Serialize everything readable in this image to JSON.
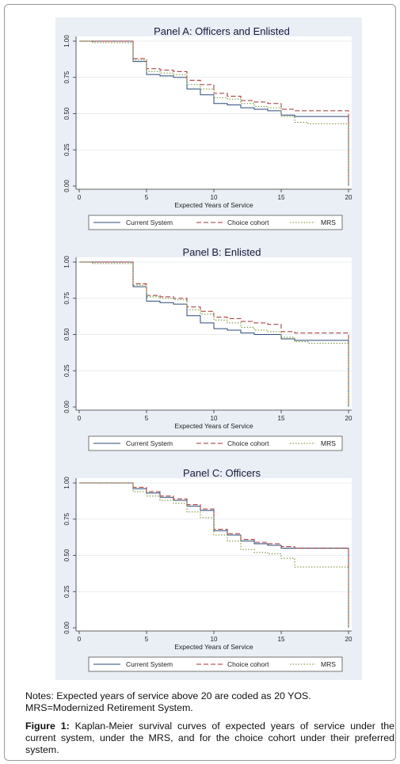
{
  "notes": {
    "line1": "Notes: Expected years of service above 20 are coded as 20 YOS.",
    "line2": "MRS=Modernized Retirement System."
  },
  "caption": {
    "label": "Figure 1:",
    "text": " Kaplan-Meier survival curves of expected years of service under the current system, under the MRS, and for the choice cohort under their preferred system."
  },
  "colors": {
    "current": "#2b4a7a",
    "choice": "#a03030",
    "mrs": "#6e8a2a"
  },
  "chart_data": [
    {
      "type": "line",
      "title": "Panel A: Officers and Enlisted",
      "xlabel": "Expected Years of Service",
      "ylabel": "",
      "xlim": [
        0,
        20
      ],
      "ylim": [
        0,
        1
      ],
      "xticks": [
        "0",
        "5",
        "10",
        "15",
        "20"
      ],
      "yticks": [
        "0.00",
        "0.25",
        "0.50",
        "0.75",
        "1.00"
      ],
      "legend": {
        "position": "bottom",
        "entries": [
          "Current System",
          "Choice cohort",
          "MRS"
        ]
      },
      "series": [
        {
          "name": "Current System",
          "style": "solid",
          "x": [
            0,
            4,
            5,
            6,
            7,
            8,
            9,
            10,
            11,
            12,
            13,
            14,
            15,
            16,
            20,
            20
          ],
          "y": [
            1.0,
            0.86,
            0.77,
            0.76,
            0.75,
            0.67,
            0.63,
            0.57,
            0.56,
            0.54,
            0.53,
            0.52,
            0.49,
            0.48,
            0.48,
            0.0
          ]
        },
        {
          "name": "Choice cohort",
          "style": "dashed",
          "x": [
            0,
            4,
            5,
            6,
            7,
            8,
            9,
            10,
            11,
            12,
            13,
            14,
            15,
            16,
            20,
            20
          ],
          "y": [
            1.0,
            0.88,
            0.81,
            0.8,
            0.79,
            0.73,
            0.7,
            0.64,
            0.62,
            0.59,
            0.58,
            0.57,
            0.53,
            0.52,
            0.51,
            0.0
          ]
        },
        {
          "name": "MRS",
          "style": "dotted",
          "x": [
            0,
            1,
            4,
            5,
            6,
            7,
            8,
            9,
            10,
            11,
            12,
            13,
            14,
            15,
            16,
            17,
            20,
            20
          ],
          "y": [
            1.0,
            0.99,
            0.87,
            0.79,
            0.78,
            0.77,
            0.7,
            0.67,
            0.61,
            0.6,
            0.57,
            0.55,
            0.54,
            0.48,
            0.44,
            0.43,
            0.42,
            0.0
          ]
        }
      ]
    },
    {
      "type": "line",
      "title": "Panel B: Enlisted",
      "xlabel": "Expected Years of Service",
      "ylabel": "",
      "xlim": [
        0,
        20
      ],
      "ylim": [
        0,
        1
      ],
      "xticks": [
        "0",
        "5",
        "10",
        "15",
        "20"
      ],
      "yticks": [
        "0.00",
        "0.25",
        "0.50",
        "0.75",
        "1.00"
      ],
      "legend": {
        "position": "bottom",
        "entries": [
          "Current System",
          "Choice cohort",
          "MRS"
        ]
      },
      "series": [
        {
          "name": "Current System",
          "style": "solid",
          "x": [
            0,
            4,
            5,
            6,
            7,
            8,
            9,
            10,
            11,
            12,
            13,
            14,
            15,
            16,
            20,
            20
          ],
          "y": [
            1.0,
            0.83,
            0.73,
            0.72,
            0.71,
            0.63,
            0.58,
            0.54,
            0.53,
            0.51,
            0.5,
            0.5,
            0.47,
            0.46,
            0.45,
            0.0
          ]
        },
        {
          "name": "Choice cohort",
          "style": "dashed",
          "x": [
            0,
            4,
            5,
            6,
            7,
            8,
            9,
            10,
            11,
            12,
            13,
            14,
            15,
            16,
            20,
            20
          ],
          "y": [
            1.0,
            0.85,
            0.77,
            0.76,
            0.75,
            0.69,
            0.66,
            0.62,
            0.61,
            0.59,
            0.58,
            0.57,
            0.52,
            0.51,
            0.5,
            0.0
          ]
        },
        {
          "name": "MRS",
          "style": "dotted",
          "x": [
            0,
            1,
            4,
            5,
            6,
            7,
            8,
            9,
            10,
            11,
            12,
            13,
            14,
            15,
            16,
            17,
            20,
            20
          ],
          "y": [
            1.0,
            0.99,
            0.84,
            0.76,
            0.75,
            0.74,
            0.67,
            0.64,
            0.6,
            0.58,
            0.55,
            0.53,
            0.52,
            0.48,
            0.45,
            0.44,
            0.43,
            0.0
          ]
        }
      ]
    },
    {
      "type": "line",
      "title": "Panel C: Officers",
      "xlabel": "Expected Years of Service",
      "ylabel": "",
      "xlim": [
        0,
        20
      ],
      "ylim": [
        0,
        1
      ],
      "xticks": [
        "0",
        "5",
        "10",
        "15",
        "20"
      ],
      "yticks": [
        "0.00",
        "0.25",
        "0.50",
        "0.75",
        "1.00"
      ],
      "legend": {
        "position": "bottom",
        "entries": [
          "Current System",
          "Choice cohort",
          "MRS"
        ]
      },
      "series": [
        {
          "name": "Current System",
          "style": "solid",
          "x": [
            0,
            4,
            5,
            6,
            7,
            8,
            9,
            10,
            11,
            12,
            13,
            14,
            15,
            16,
            20,
            20
          ],
          "y": [
            1.0,
            0.96,
            0.93,
            0.9,
            0.88,
            0.84,
            0.81,
            0.67,
            0.64,
            0.6,
            0.58,
            0.57,
            0.55,
            0.55,
            0.55,
            0.0
          ]
        },
        {
          "name": "Choice cohort",
          "style": "dashed",
          "x": [
            0,
            4,
            5,
            6,
            7,
            8,
            9,
            10,
            11,
            12,
            13,
            14,
            15,
            16,
            20,
            20
          ],
          "y": [
            1.0,
            0.97,
            0.94,
            0.91,
            0.89,
            0.85,
            0.82,
            0.68,
            0.65,
            0.61,
            0.59,
            0.58,
            0.56,
            0.55,
            0.55,
            0.0
          ]
        },
        {
          "name": "MRS",
          "style": "dotted",
          "x": [
            0,
            4,
            5,
            6,
            7,
            8,
            9,
            10,
            11,
            12,
            13,
            14,
            15,
            16,
            20,
            20
          ],
          "y": [
            1.0,
            0.94,
            0.91,
            0.88,
            0.86,
            0.8,
            0.76,
            0.64,
            0.6,
            0.54,
            0.52,
            0.51,
            0.48,
            0.42,
            0.41,
            0.0
          ]
        }
      ]
    }
  ]
}
